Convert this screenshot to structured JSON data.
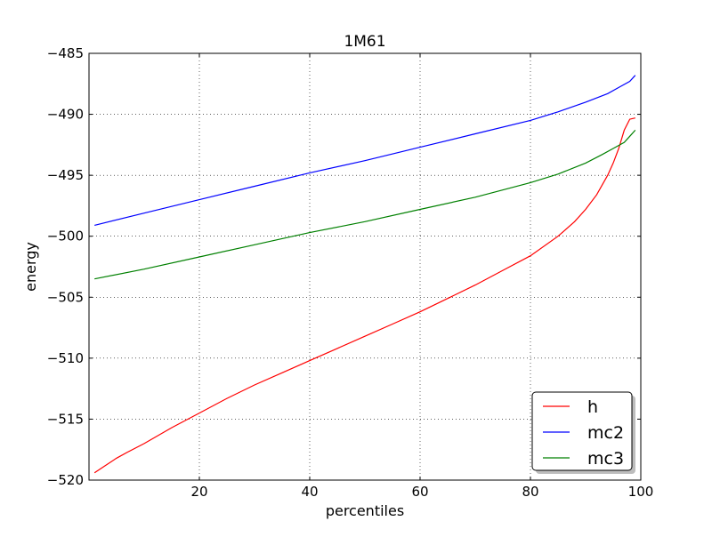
{
  "chart_data": {
    "type": "line",
    "title": "1M61",
    "xlabel": "percentiles",
    "ylabel": "energy",
    "xlim": [
      0,
      100
    ],
    "ylim": [
      -520,
      -485
    ],
    "xticks": [
      20,
      40,
      60,
      80,
      100
    ],
    "yticks": [
      -520,
      -515,
      -510,
      -505,
      -500,
      -495,
      -490,
      -485
    ],
    "xtick_labels": [
      "20",
      "40",
      "60",
      "80",
      "100"
    ],
    "ytick_labels": [
      "−520",
      "−515",
      "−510",
      "−505",
      "−500",
      "−495",
      "−490",
      "−485"
    ],
    "grid": true,
    "legend_position": "lower right",
    "series": [
      {
        "name": "h",
        "color": "#ff0000",
        "x": [
          1,
          3,
          5,
          7,
          10,
          15,
          20,
          25,
          30,
          35,
          40,
          45,
          50,
          55,
          60,
          65,
          70,
          75,
          80,
          85,
          88,
          90,
          92,
          94,
          95,
          96,
          97,
          98,
          99
        ],
        "y": [
          -519.4,
          -518.8,
          -518.2,
          -517.7,
          -517.0,
          -515.7,
          -514.5,
          -513.3,
          -512.2,
          -511.2,
          -510.2,
          -509.2,
          -508.2,
          -507.2,
          -506.2,
          -505.1,
          -504.0,
          -502.8,
          -501.6,
          -500.0,
          -498.8,
          -497.8,
          -496.6,
          -495.0,
          -494.0,
          -492.8,
          -491.3,
          -490.4,
          -490.3
        ]
      },
      {
        "name": "mc2",
        "color": "#0000ff",
        "x": [
          1,
          10,
          20,
          30,
          40,
          50,
          60,
          70,
          80,
          85,
          90,
          94,
          96,
          98,
          99
        ],
        "y": [
          -499.1,
          -498.1,
          -497.0,
          -495.9,
          -494.8,
          -493.8,
          -492.7,
          -491.6,
          -490.5,
          -489.8,
          -489.0,
          -488.3,
          -487.8,
          -487.3,
          -486.8
        ]
      },
      {
        "name": "mc3",
        "color": "#008000",
        "x": [
          1,
          10,
          20,
          30,
          40,
          50,
          60,
          70,
          80,
          85,
          90,
          93,
          95,
          97,
          98,
          99
        ],
        "y": [
          -503.5,
          -502.7,
          -501.7,
          -500.7,
          -499.7,
          -498.8,
          -497.8,
          -496.8,
          -495.6,
          -494.9,
          -494.0,
          -493.3,
          -492.8,
          -492.3,
          -491.8,
          -491.3
        ]
      }
    ]
  }
}
